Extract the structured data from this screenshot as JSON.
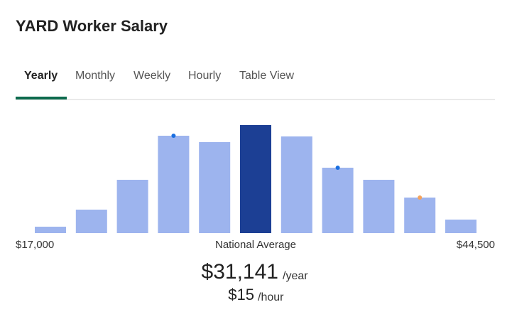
{
  "header": {
    "title": "YARD Worker Salary"
  },
  "tabs": {
    "items": [
      "Yearly",
      "Monthly",
      "Weekly",
      "Hourly",
      "Table View"
    ],
    "active": 0
  },
  "chart_data": {
    "type": "bar",
    "values": [
      9,
      33,
      75,
      137,
      128,
      152,
      136,
      92,
      75,
      50,
      19
    ],
    "colors": [
      "#9db4ee",
      "#9db4ee",
      "#9db4ee",
      "#9db4ee",
      "#9db4ee",
      "#1c3f94",
      "#9db4ee",
      "#9db4ee",
      "#9db4ee",
      "#9db4ee",
      "#9db4ee"
    ],
    "dots": [
      null,
      null,
      null,
      "#1a6fe0",
      null,
      null,
      null,
      "#1a6fe0",
      null,
      "#f5a35c",
      null
    ],
    "ylim": [
      0,
      152
    ],
    "min_label": "$17,000",
    "center_label": "National Average",
    "max_label": "$44,500"
  },
  "salary": {
    "yearly": "$31,141",
    "yearly_unit": "/year",
    "hourly": "$15",
    "hourly_unit": "/hour"
  }
}
